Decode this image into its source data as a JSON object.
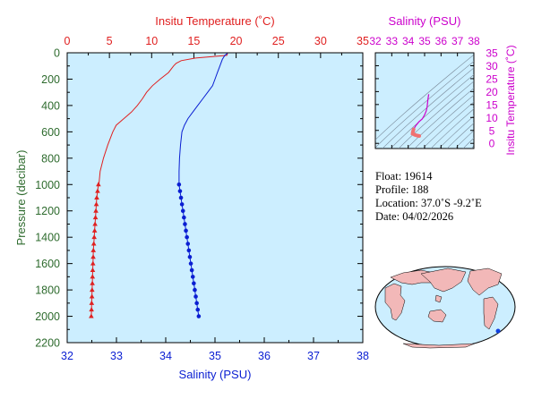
{
  "colors": {
    "temperature": "#e02020",
    "salinity": "#0a1ed2",
    "pressure_axis": "#2e6b2e",
    "ts_axis": "#cc00cc",
    "plot_background": "#cceeff",
    "map_ocean": "#cceeff",
    "map_land": "#f2b8b8"
  },
  "chart_data": [
    {
      "type": "line",
      "title": "",
      "temperature_axis": {
        "label": "Insitu Temperature (˚C)",
        "range": [
          0,
          35
        ],
        "ticks": [
          "0",
          "5",
          "10",
          "15",
          "20",
          "25",
          "30",
          "35"
        ]
      },
      "salinity_axis": {
        "label": "Salinity (PSU)",
        "range": [
          32,
          38
        ],
        "ticks": [
          "32",
          "33",
          "34",
          "35",
          "36",
          "37",
          "38"
        ]
      },
      "pressure_axis": {
        "label": "Pressure (decibar)",
        "range": [
          0,
          2200
        ],
        "inverted": true,
        "ticks": [
          "0",
          "200",
          "400",
          "600",
          "800",
          "1000",
          "1200",
          "1400",
          "1600",
          "1800",
          "2000",
          "2200"
        ]
      },
      "series": [
        {
          "name": "Temperature",
          "marker": "triangle",
          "points": [
            {
              "p": 5,
              "v": 19.0
            },
            {
              "p": 20,
              "v": 18.9
            },
            {
              "p": 40,
              "v": 15.2
            },
            {
              "p": 60,
              "v": 13.5
            },
            {
              "p": 80,
              "v": 12.9
            },
            {
              "p": 100,
              "v": 12.6
            },
            {
              "p": 150,
              "v": 12.0
            },
            {
              "p": 200,
              "v": 11.0
            },
            {
              "p": 250,
              "v": 10.1
            },
            {
              "p": 300,
              "v": 9.4
            },
            {
              "p": 350,
              "v": 8.9
            },
            {
              "p": 400,
              "v": 8.3
            },
            {
              "p": 450,
              "v": 7.6
            },
            {
              "p": 500,
              "v": 6.7
            },
            {
              "p": 550,
              "v": 5.8
            },
            {
              "p": 600,
              "v": 5.4
            },
            {
              "p": 700,
              "v": 4.8
            },
            {
              "p": 800,
              "v": 4.3
            },
            {
              "p": 900,
              "v": 3.9
            },
            {
              "p": 1000,
              "v": 3.75
            }
          ],
          "marked_points": [
            {
              "p": 1000,
              "v": 3.7
            },
            {
              "p": 1050,
              "v": 3.6
            },
            {
              "p": 1100,
              "v": 3.5
            },
            {
              "p": 1150,
              "v": 3.45
            },
            {
              "p": 1200,
              "v": 3.4
            },
            {
              "p": 1250,
              "v": 3.35
            },
            {
              "p": 1300,
              "v": 3.3
            },
            {
              "p": 1350,
              "v": 3.25
            },
            {
              "p": 1400,
              "v": 3.2
            },
            {
              "p": 1450,
              "v": 3.15
            },
            {
              "p": 1500,
              "v": 3.1
            },
            {
              "p": 1550,
              "v": 3.08
            },
            {
              "p": 1600,
              "v": 3.05
            },
            {
              "p": 1650,
              "v": 3.02
            },
            {
              "p": 1700,
              "v": 3.0
            },
            {
              "p": 1750,
              "v": 2.98
            },
            {
              "p": 1800,
              "v": 2.95
            },
            {
              "p": 1850,
              "v": 2.93
            },
            {
              "p": 1900,
              "v": 2.9
            },
            {
              "p": 1950,
              "v": 2.88
            },
            {
              "p": 2000,
              "v": 2.85
            }
          ]
        },
        {
          "name": "Salinity",
          "marker": "circle",
          "points": [
            {
              "p": 5,
              "v": 35.25
            },
            {
              "p": 20,
              "v": 35.2
            },
            {
              "p": 50,
              "v": 35.15
            },
            {
              "p": 100,
              "v": 35.1
            },
            {
              "p": 150,
              "v": 35.05
            },
            {
              "p": 200,
              "v": 35.0
            },
            {
              "p": 250,
              "v": 34.95
            },
            {
              "p": 300,
              "v": 34.85
            },
            {
              "p": 350,
              "v": 34.75
            },
            {
              "p": 400,
              "v": 34.65
            },
            {
              "p": 450,
              "v": 34.55
            },
            {
              "p": 500,
              "v": 34.45
            },
            {
              "p": 550,
              "v": 34.38
            },
            {
              "p": 600,
              "v": 34.33
            },
            {
              "p": 700,
              "v": 34.3
            },
            {
              "p": 800,
              "v": 34.28
            },
            {
              "p": 900,
              "v": 34.27
            },
            {
              "p": 1000,
              "v": 34.27
            }
          ],
          "marked_points": [
            {
              "p": 1000,
              "v": 34.27
            },
            {
              "p": 1050,
              "v": 34.29
            },
            {
              "p": 1100,
              "v": 34.31
            },
            {
              "p": 1150,
              "v": 34.33
            },
            {
              "p": 1200,
              "v": 34.35
            },
            {
              "p": 1250,
              "v": 34.37
            },
            {
              "p": 1300,
              "v": 34.39
            },
            {
              "p": 1350,
              "v": 34.41
            },
            {
              "p": 1400,
              "v": 34.43
            },
            {
              "p": 1450,
              "v": 34.45
            },
            {
              "p": 1500,
              "v": 34.47
            },
            {
              "p": 1550,
              "v": 34.49
            },
            {
              "p": 1600,
              "v": 34.51
            },
            {
              "p": 1650,
              "v": 34.53
            },
            {
              "p": 1700,
              "v": 34.55
            },
            {
              "p": 1750,
              "v": 34.57
            },
            {
              "p": 1800,
              "v": 34.59
            },
            {
              "p": 1850,
              "v": 34.61
            },
            {
              "p": 1900,
              "v": 34.63
            },
            {
              "p": 1950,
              "v": 34.65
            },
            {
              "p": 2000,
              "v": 34.67
            }
          ]
        }
      ]
    },
    {
      "type": "scatter",
      "title": "",
      "x_axis": {
        "label": "Salinity (PSU)",
        "range": [
          32,
          38
        ],
        "ticks": [
          "32",
          "33",
          "34",
          "35",
          "36",
          "37",
          "38"
        ]
      },
      "y_axis": {
        "label": "Insitu Temperature (˚C)",
        "range": [
          -2,
          35
        ],
        "ticks": [
          "0",
          "5",
          "10",
          "15",
          "20",
          "25",
          "30",
          "35"
        ]
      },
      "grid": false,
      "density_contours": true,
      "series": [
        {
          "points": [
            {
              "s": 35.25,
              "t": 19.0
            },
            {
              "s": 35.2,
              "t": 17.0
            },
            {
              "s": 35.15,
              "t": 14.0
            },
            {
              "s": 35.1,
              "t": 12.5
            },
            {
              "s": 35.0,
              "t": 11.0
            },
            {
              "s": 34.85,
              "t": 9.4
            },
            {
              "s": 34.65,
              "t": 8.3
            },
            {
              "s": 34.45,
              "t": 6.7
            },
            {
              "s": 34.33,
              "t": 5.4
            },
            {
              "s": 34.28,
              "t": 4.3
            },
            {
              "s": 34.27,
              "t": 3.7
            },
            {
              "s": 34.4,
              "t": 3.3
            },
            {
              "s": 34.55,
              "t": 3.0
            },
            {
              "s": 34.67,
              "t": 2.85
            }
          ]
        }
      ]
    }
  ],
  "info": {
    "float_label": "Float:",
    "float_value": "19614",
    "profile_label": "Profile:",
    "profile_value": "188",
    "location_label": "Location:",
    "location_value": "37.0˚S  -9.2˚E",
    "date_label": "Date:",
    "date_value": "04/02/2026"
  },
  "map": {
    "marker_color": "#1040e0"
  }
}
